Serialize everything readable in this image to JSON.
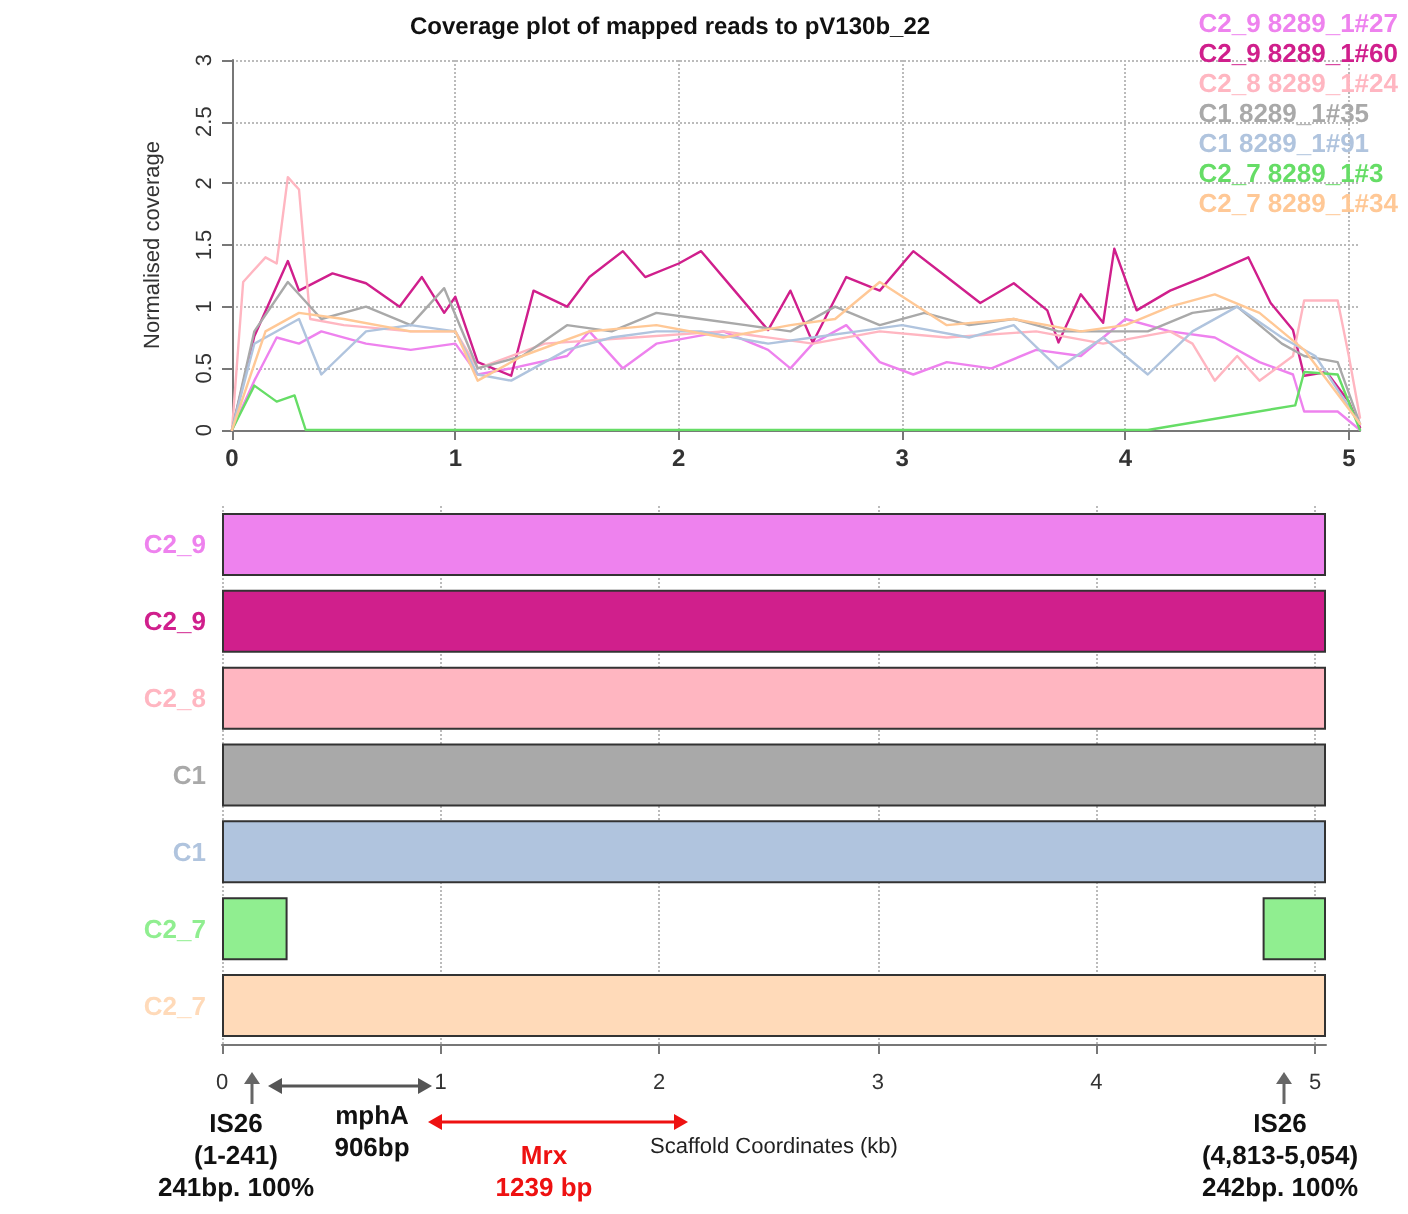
{
  "chart_data": [
    {
      "type": "line",
      "title": "Coverage plot of mapped reads to pV130b_22",
      "ylabel": "Normalised coverage",
      "xlim": [
        0,
        5.05
      ],
      "xticks": [
        0,
        1,
        2,
        3,
        4,
        5
      ],
      "ylim": [
        0,
        3
      ],
      "yticks": [
        0,
        0.5,
        1,
        1.5,
        2,
        2.5,
        3
      ],
      "grid": true,
      "legend": "top right",
      "marker": "none",
      "line_style": "solid",
      "series": [
        {
          "name": "C2_9 8289_1#27",
          "color": "#ee82ee",
          "x": [
            0,
            0.1,
            0.2,
            0.3,
            0.4,
            0.6,
            0.8,
            1.0,
            1.1,
            1.25,
            1.5,
            1.6,
            1.75,
            1.9,
            2.2,
            2.4,
            2.5,
            2.6,
            2.75,
            2.9,
            3.05,
            3.2,
            3.4,
            3.6,
            3.8,
            4.0,
            4.2,
            4.4,
            4.6,
            4.75,
            4.8,
            4.95,
            5.05
          ],
          "values": [
            0,
            0.4,
            0.75,
            0.7,
            0.8,
            0.7,
            0.65,
            0.7,
            0.45,
            0.5,
            0.6,
            0.8,
            0.5,
            0.7,
            0.8,
            0.65,
            0.5,
            0.7,
            0.85,
            0.55,
            0.45,
            0.55,
            0.5,
            0.65,
            0.6,
            0.9,
            0.8,
            0.75,
            0.55,
            0.45,
            0.15,
            0.15,
            0
          ]
        },
        {
          "name": "C2_9 8289_1#60",
          "color": "#d01f8c",
          "x": [
            0,
            0.1,
            0.25,
            0.3,
            0.45,
            0.6,
            0.75,
            0.85,
            0.95,
            1.0,
            1.1,
            1.25,
            1.35,
            1.5,
            1.6,
            1.75,
            1.85,
            2.0,
            2.1,
            2.25,
            2.4,
            2.5,
            2.6,
            2.75,
            2.9,
            3.05,
            3.2,
            3.35,
            3.5,
            3.65,
            3.7,
            3.8,
            3.9,
            3.95,
            4.05,
            4.2,
            4.35,
            4.55,
            4.65,
            4.75,
            4.8,
            4.9,
            5.0,
            5.05
          ],
          "values": [
            0,
            0.76,
            1.37,
            1.13,
            1.27,
            1.19,
            1.0,
            1.24,
            0.95,
            1.08,
            0.55,
            0.44,
            1.13,
            1.0,
            1.24,
            1.45,
            1.24,
            1.35,
            1.45,
            1.13,
            0.81,
            1.13,
            0.71,
            1.24,
            1.13,
            1.45,
            1.24,
            1.03,
            1.19,
            0.97,
            0.71,
            1.1,
            0.87,
            1.47,
            0.97,
            1.13,
            1.24,
            1.4,
            1.03,
            0.81,
            0.44,
            0.47,
            0.23,
            0.02
          ]
        },
        {
          "name": "C2_8 8289_1#24",
          "color": "#ffb6c1",
          "x": [
            0,
            0.05,
            0.15,
            0.2,
            0.25,
            0.3,
            0.35,
            0.5,
            0.8,
            1.0,
            1.1,
            1.4,
            1.8,
            2.2,
            2.6,
            2.9,
            3.2,
            3.6,
            3.9,
            4.2,
            4.3,
            4.4,
            4.5,
            4.6,
            4.75,
            4.8,
            4.95,
            5.0,
            5.05
          ],
          "values": [
            0,
            1.2,
            1.4,
            1.35,
            2.05,
            1.95,
            0.9,
            0.85,
            0.8,
            0.8,
            0.5,
            0.7,
            0.75,
            0.8,
            0.7,
            0.8,
            0.75,
            0.8,
            0.7,
            0.8,
            0.7,
            0.4,
            0.6,
            0.4,
            0.6,
            1.05,
            1.05,
            0.6,
            0.1
          ]
        },
        {
          "name": "C1 8289_1#35",
          "color": "#a9a9a9",
          "x": [
            0,
            0.1,
            0.25,
            0.4,
            0.6,
            0.8,
            0.95,
            1.1,
            1.3,
            1.5,
            1.7,
            1.9,
            2.1,
            2.3,
            2.5,
            2.7,
            2.9,
            3.1,
            3.3,
            3.5,
            3.7,
            3.9,
            4.1,
            4.3,
            4.5,
            4.7,
            4.8,
            4.95,
            5.05
          ],
          "values": [
            0,
            0.8,
            1.2,
            0.9,
            1.0,
            0.85,
            1.15,
            0.5,
            0.6,
            0.85,
            0.8,
            0.95,
            0.9,
            0.85,
            0.8,
            1.0,
            0.85,
            0.95,
            0.85,
            0.9,
            0.8,
            0.8,
            0.8,
            0.95,
            1.0,
            0.7,
            0.6,
            0.55,
            0.05
          ]
        },
        {
          "name": "C1 8289_1#91",
          "color": "#b0c4de",
          "x": [
            0,
            0.1,
            0.3,
            0.4,
            0.6,
            0.8,
            1.0,
            1.1,
            1.25,
            1.5,
            1.7,
            1.9,
            2.1,
            2.4,
            2.6,
            2.8,
            3.0,
            3.3,
            3.5,
            3.7,
            3.9,
            4.1,
            4.3,
            4.5,
            4.7,
            4.85,
            5.05
          ],
          "values": [
            0,
            0.7,
            0.9,
            0.45,
            0.8,
            0.85,
            0.8,
            0.45,
            0.4,
            0.65,
            0.75,
            0.8,
            0.8,
            0.7,
            0.75,
            0.8,
            0.85,
            0.75,
            0.85,
            0.5,
            0.75,
            0.45,
            0.8,
            1.0,
            0.75,
            0.6,
            0.05
          ]
        },
        {
          "name": "C2_7 8289_1#3",
          "color": "#66dd66",
          "x": [
            0,
            0.1,
            0.2,
            0.28,
            0.33,
            4.1,
            4.76,
            4.8,
            4.95,
            5.05
          ],
          "values": [
            0,
            0.36,
            0.23,
            0.28,
            0,
            0,
            0.2,
            0.47,
            0.45,
            0
          ]
        },
        {
          "name": "C2_7 8289_1#34",
          "color": "#ffc896",
          "x": [
            0,
            0.15,
            0.3,
            0.5,
            0.8,
            1.0,
            1.1,
            1.3,
            1.6,
            1.9,
            2.2,
            2.5,
            2.7,
            2.9,
            3.2,
            3.5,
            3.8,
            4.0,
            4.2,
            4.4,
            4.6,
            4.8,
            5.05
          ],
          "values": [
            0,
            0.8,
            0.95,
            0.9,
            0.8,
            0.8,
            0.4,
            0.6,
            0.8,
            0.85,
            0.75,
            0.85,
            0.9,
            1.2,
            0.85,
            0.9,
            0.8,
            0.85,
            1.0,
            1.1,
            0.95,
            0.65,
            0.05
          ]
        }
      ]
    },
    {
      "type": "bar",
      "orientation": "horizontal",
      "xlabel": "Scaffold Coordinates (kb)",
      "categories": [
        "C2_9",
        "C2_9",
        "C2_8",
        "C1",
        "C1",
        "C2_7",
        "C2_7"
      ],
      "xlim": [
        0,
        5.05
      ],
      "xticks": [
        0,
        1,
        2,
        3,
        4,
        5
      ],
      "grid": true,
      "series": [
        {
          "colors": [
            "#ee82ee",
            "#d01f8c",
            "#ffb6c1",
            "#a9a9a9",
            "#b0c4de",
            "#90ee90",
            "#ffdab9"
          ],
          "values": [
            5.05,
            5.05,
            5.05,
            5.05,
            5.05,
            0.3,
            5.05
          ]
        },
        {
          "colors": [
            "#ee82ee",
            "#d01f8c",
            "#ffb6c1",
            "#a9a9a9",
            "#b0c4de",
            "#90ee90",
            "#ffdab9"
          ],
          "base": [
            null,
            null,
            null,
            null,
            null,
            4.76,
            null
          ],
          "values": [
            null,
            null,
            null,
            null,
            null,
            0.29,
            null
          ]
        }
      ],
      "annotations": [
        "IS26\n(1-241)\n241bp. 100%",
        "mphA\n906bp",
        "Mrx\n1239 bp",
        "IS26\n(4,813-5,054)\n242bp. 100%"
      ]
    }
  ]
}
